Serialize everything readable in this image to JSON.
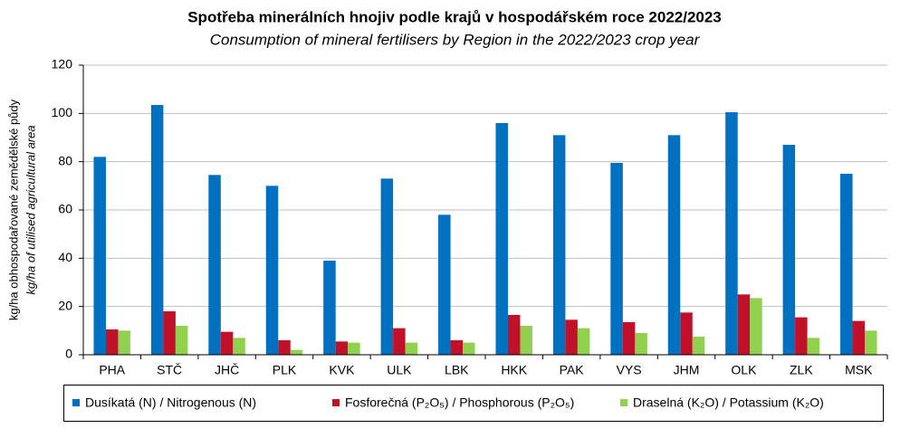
{
  "chart_data": {
    "type": "bar",
    "title": "Spotřeba minerálních hnojiv podle krajů v hospodářském roce 2022/2023",
    "subtitle": "Consumption of mineral fertilisers by Region in the 2022/2023 crop year",
    "y_label": "kg/ha obhospodařované zemědělské půdy",
    "y_label_en": "kg/ha of utilised agricultural area",
    "categories": [
      "PHA",
      "STČ",
      "JHČ",
      "PLK",
      "KVK",
      "ULK",
      "LBK",
      "HKK",
      "PAK",
      "VYS",
      "JHM",
      "OLK",
      "ZLK",
      "MSK"
    ],
    "series": [
      {
        "name": "Dusíkatá (N) / Nitrogenous (N)",
        "color": "#0070c0",
        "values": [
          82,
          103.5,
          74.5,
          70,
          39,
          73,
          58,
          96,
          91,
          79.5,
          91,
          100.5,
          87,
          75
        ]
      },
      {
        "name": "Fosforečná (P₂O₅) / Phosphorous (P₂O₅)",
        "color": "#c0102a",
        "values": [
          10.5,
          18,
          9.5,
          6,
          5.5,
          11,
          6,
          16.5,
          14.5,
          13.5,
          17.5,
          25,
          15.5,
          14
        ]
      },
      {
        "name": "Draselná (K₂O) / Potassium (K₂O)",
        "color": "#92d050",
        "values": [
          10,
          12,
          7,
          2,
          5,
          5,
          5,
          12,
          11,
          9,
          7.5,
          23.5,
          7,
          10
        ]
      }
    ],
    "ylim": [
      0,
      120
    ],
    "yticks": [
      0,
      20,
      40,
      60,
      80,
      100,
      120
    ],
    "grid": true,
    "legend": "bottom"
  }
}
